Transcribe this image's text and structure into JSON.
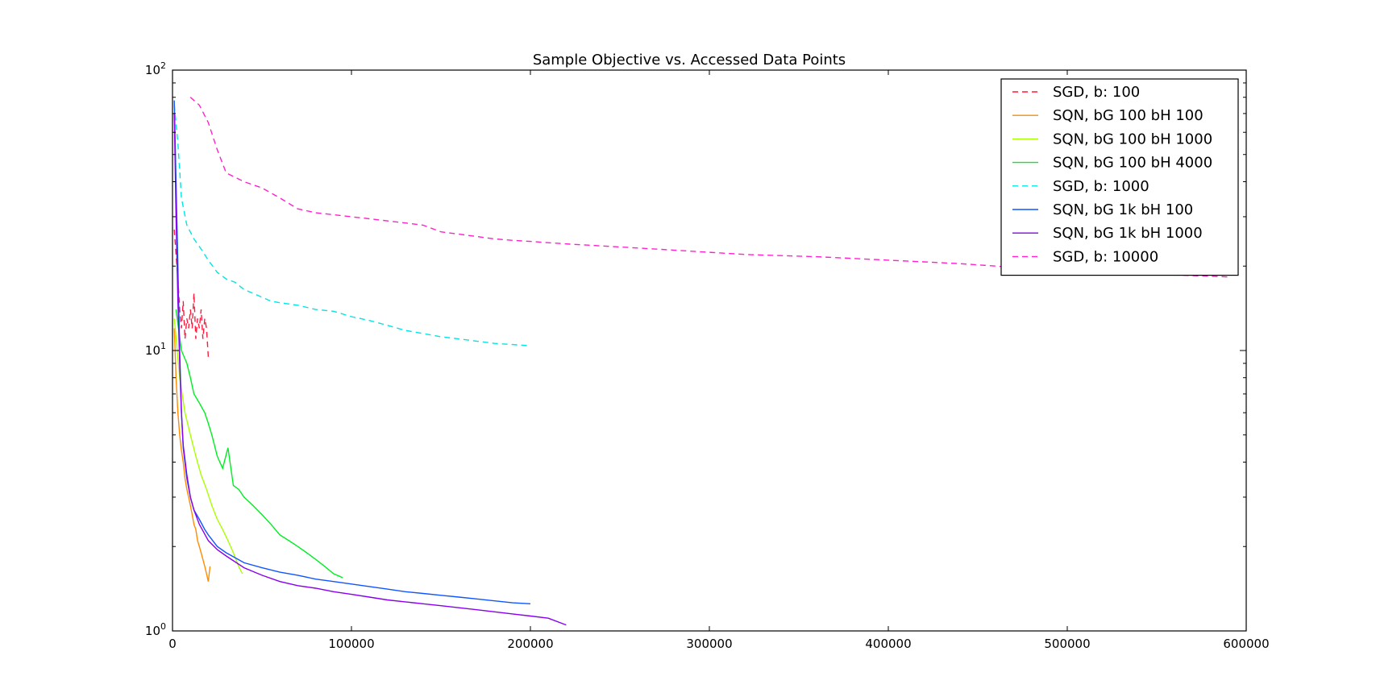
{
  "chart_data": {
    "type": "line",
    "title": "Sample Objective vs. Accessed Data Points",
    "xlabel": "",
    "ylabel": "",
    "xlim": [
      0,
      600000
    ],
    "ylim": [
      1,
      100
    ],
    "yscale": "log",
    "grid": false,
    "legend_position": "top-right",
    "x_ticks": [
      {
        "value": 0,
        "label": "0"
      },
      {
        "value": 100000,
        "label": "100000"
      },
      {
        "value": 200000,
        "label": "200000"
      },
      {
        "value": 300000,
        "label": "300000"
      },
      {
        "value": 400000,
        "label": "400000"
      },
      {
        "value": 500000,
        "label": "500000"
      },
      {
        "value": 600000,
        "label": "600000"
      }
    ],
    "y_ticks": [
      {
        "value": 1,
        "base": "10",
        "exp": "0"
      },
      {
        "value": 10,
        "base": "10",
        "exp": "1"
      },
      {
        "value": 100,
        "base": "10",
        "exp": "2"
      }
    ],
    "series": [
      {
        "name": "SGD, b: 100",
        "color": "#ff1a3c",
        "dash": "dashed",
        "points": [
          [
            1000,
            27
          ],
          [
            2000,
            22
          ],
          [
            3000,
            18
          ],
          [
            4000,
            14
          ],
          [
            5000,
            12
          ],
          [
            6000,
            15
          ],
          [
            7000,
            11
          ],
          [
            8000,
            13
          ],
          [
            9000,
            12
          ],
          [
            10000,
            14
          ],
          [
            11000,
            12
          ],
          [
            12000,
            16
          ],
          [
            13000,
            11
          ],
          [
            14000,
            13
          ],
          [
            15000,
            12
          ],
          [
            16000,
            14
          ],
          [
            17000,
            11
          ],
          [
            18000,
            13
          ],
          [
            19000,
            12
          ],
          [
            20000,
            9.5
          ]
        ]
      },
      {
        "name": "SQN, bG 100 bH 100",
        "color": "#ff8c00",
        "dash": "solid",
        "points": [
          [
            1000,
            12
          ],
          [
            2000,
            8
          ],
          [
            3000,
            6
          ],
          [
            4000,
            5
          ],
          [
            5000,
            4.4
          ],
          [
            6000,
            4
          ],
          [
            7000,
            3.5
          ],
          [
            8000,
            3.2
          ],
          [
            9000,
            3
          ],
          [
            10000,
            2.8
          ],
          [
            11000,
            2.6
          ],
          [
            12000,
            2.4
          ],
          [
            13000,
            2.3
          ],
          [
            14000,
            2.1
          ],
          [
            15000,
            2
          ],
          [
            16000,
            1.9
          ],
          [
            17000,
            1.8
          ],
          [
            18000,
            1.7
          ],
          [
            19000,
            1.6
          ],
          [
            20000,
            1.5
          ],
          [
            21000,
            1.7
          ]
        ]
      },
      {
        "name": "SQN, bG 100 bH 1000",
        "color": "#aaff00",
        "dash": "solid",
        "points": [
          [
            1000,
            13
          ],
          [
            4000,
            8
          ],
          [
            7000,
            6
          ],
          [
            10000,
            5
          ],
          [
            13000,
            4.2
          ],
          [
            16000,
            3.6
          ],
          [
            19000,
            3.2
          ],
          [
            22000,
            2.8
          ],
          [
            25000,
            2.5
          ],
          [
            28000,
            2.3
          ],
          [
            31000,
            2.1
          ],
          [
            34000,
            1.9
          ],
          [
            37000,
            1.7
          ],
          [
            39000,
            1.6
          ]
        ]
      },
      {
        "name": "SQN, bG 100 bH 4000",
        "color": "#00ee22",
        "dash": "solid",
        "points": [
          [
            2000,
            14
          ],
          [
            5000,
            10
          ],
          [
            8000,
            9
          ],
          [
            10000,
            8
          ],
          [
            12000,
            7
          ],
          [
            15000,
            6.5
          ],
          [
            18000,
            6
          ],
          [
            20000,
            5.5
          ],
          [
            22000,
            5
          ],
          [
            25000,
            4.2
          ],
          [
            28000,
            3.8
          ],
          [
            31000,
            4.5
          ],
          [
            34000,
            3.3
          ],
          [
            37000,
            3.2
          ],
          [
            40000,
            3
          ],
          [
            45000,
            2.8
          ],
          [
            50000,
            2.6
          ],
          [
            55000,
            2.4
          ],
          [
            60000,
            2.2
          ],
          [
            65000,
            2.1
          ],
          [
            70000,
            2
          ],
          [
            75000,
            1.9
          ],
          [
            80000,
            1.8
          ],
          [
            85000,
            1.7
          ],
          [
            90000,
            1.6
          ],
          [
            95000,
            1.55
          ]
        ]
      },
      {
        "name": "SGD, b: 1000",
        "color": "#00e5e5",
        "dash": "dashed",
        "points": [
          [
            1000,
            75
          ],
          [
            3000,
            55
          ],
          [
            5000,
            35
          ],
          [
            8000,
            28
          ],
          [
            12000,
            25
          ],
          [
            16000,
            23
          ],
          [
            20000,
            21
          ],
          [
            25000,
            19
          ],
          [
            30000,
            18
          ],
          [
            35000,
            17.5
          ],
          [
            40000,
            16.5
          ],
          [
            45000,
            16
          ],
          [
            50000,
            15.5
          ],
          [
            55000,
            15
          ],
          [
            60000,
            14.8
          ],
          [
            70000,
            14.5
          ],
          [
            80000,
            14
          ],
          [
            90000,
            13.8
          ],
          [
            100000,
            13.2
          ],
          [
            110000,
            12.8
          ],
          [
            120000,
            12.3
          ],
          [
            130000,
            11.8
          ],
          [
            140000,
            11.5
          ],
          [
            150000,
            11.2
          ],
          [
            160000,
            11
          ],
          [
            170000,
            10.8
          ],
          [
            180000,
            10.6
          ],
          [
            190000,
            10.5
          ],
          [
            200000,
            10.4
          ]
        ]
      },
      {
        "name": "SQN, bG 1k bH 100",
        "color": "#1155ff",
        "dash": "solid",
        "points": [
          [
            1000,
            78
          ],
          [
            2000,
            40
          ],
          [
            3000,
            20
          ],
          [
            4000,
            10
          ],
          [
            5000,
            6
          ],
          [
            6000,
            4.5
          ],
          [
            8000,
            3.5
          ],
          [
            10000,
            3
          ],
          [
            12000,
            2.7
          ],
          [
            15000,
            2.5
          ],
          [
            18000,
            2.3
          ],
          [
            20000,
            2.2
          ],
          [
            25000,
            2
          ],
          [
            30000,
            1.9
          ],
          [
            40000,
            1.75
          ],
          [
            50000,
            1.68
          ],
          [
            60000,
            1.62
          ],
          [
            70000,
            1.58
          ],
          [
            80000,
            1.53
          ],
          [
            90000,
            1.5
          ],
          [
            100000,
            1.47
          ],
          [
            110000,
            1.44
          ],
          [
            120000,
            1.41
          ],
          [
            130000,
            1.38
          ],
          [
            140000,
            1.36
          ],
          [
            150000,
            1.34
          ],
          [
            160000,
            1.32
          ],
          [
            170000,
            1.3
          ],
          [
            180000,
            1.28
          ],
          [
            190000,
            1.26
          ],
          [
            200000,
            1.25
          ]
        ]
      },
      {
        "name": "SQN, bG 1k bH 1000",
        "color": "#8800ee",
        "dash": "solid",
        "points": [
          [
            1000,
            70
          ],
          [
            2000,
            30
          ],
          [
            3000,
            15
          ],
          [
            4000,
            9
          ],
          [
            5000,
            6
          ],
          [
            6000,
            4.6
          ],
          [
            8000,
            3.6
          ],
          [
            10000,
            3
          ],
          [
            12000,
            2.7
          ],
          [
            15000,
            2.4
          ],
          [
            20000,
            2.1
          ],
          [
            25000,
            1.95
          ],
          [
            30000,
            1.85
          ],
          [
            40000,
            1.68
          ],
          [
            50000,
            1.58
          ],
          [
            60000,
            1.5
          ],
          [
            70000,
            1.45
          ],
          [
            80000,
            1.42
          ],
          [
            90000,
            1.38
          ],
          [
            100000,
            1.35
          ],
          [
            110000,
            1.32
          ],
          [
            120000,
            1.29
          ],
          [
            130000,
            1.27
          ],
          [
            140000,
            1.25
          ],
          [
            150000,
            1.23
          ],
          [
            160000,
            1.21
          ],
          [
            170000,
            1.19
          ],
          [
            180000,
            1.17
          ],
          [
            190000,
            1.15
          ],
          [
            200000,
            1.13
          ],
          [
            210000,
            1.11
          ],
          [
            220000,
            1.05
          ]
        ]
      },
      {
        "name": "SGD, b: 10000",
        "color": "#ff22cc",
        "dash": "dashed",
        "points": [
          [
            10000,
            80
          ],
          [
            15000,
            75
          ],
          [
            20000,
            65
          ],
          [
            25000,
            52
          ],
          [
            30000,
            43
          ],
          [
            40000,
            40
          ],
          [
            50000,
            38
          ],
          [
            60000,
            35
          ],
          [
            70000,
            32
          ],
          [
            80000,
            31
          ],
          [
            90000,
            30.5
          ],
          [
            100000,
            30
          ],
          [
            110000,
            29.5
          ],
          [
            120000,
            29
          ],
          [
            130000,
            28.5
          ],
          [
            140000,
            28
          ],
          [
            150000,
            26.5
          ],
          [
            160000,
            26
          ],
          [
            170000,
            25.5
          ],
          [
            180000,
            25
          ],
          [
            190000,
            24.7
          ],
          [
            200000,
            24.5
          ],
          [
            220000,
            24
          ],
          [
            240000,
            23.6
          ],
          [
            260000,
            23.2
          ],
          [
            280000,
            22.8
          ],
          [
            300000,
            22.4
          ],
          [
            320000,
            22
          ],
          [
            340000,
            21.8
          ],
          [
            360000,
            21.6
          ],
          [
            380000,
            21.3
          ],
          [
            400000,
            21
          ],
          [
            420000,
            20.7
          ],
          [
            440000,
            20.4
          ],
          [
            460000,
            20
          ],
          [
            480000,
            19.5
          ],
          [
            500000,
            19.2
          ],
          [
            520000,
            19
          ],
          [
            540000,
            18.8
          ],
          [
            560000,
            18.6
          ],
          [
            580000,
            18.4
          ],
          [
            590000,
            18.3
          ]
        ]
      }
    ]
  }
}
